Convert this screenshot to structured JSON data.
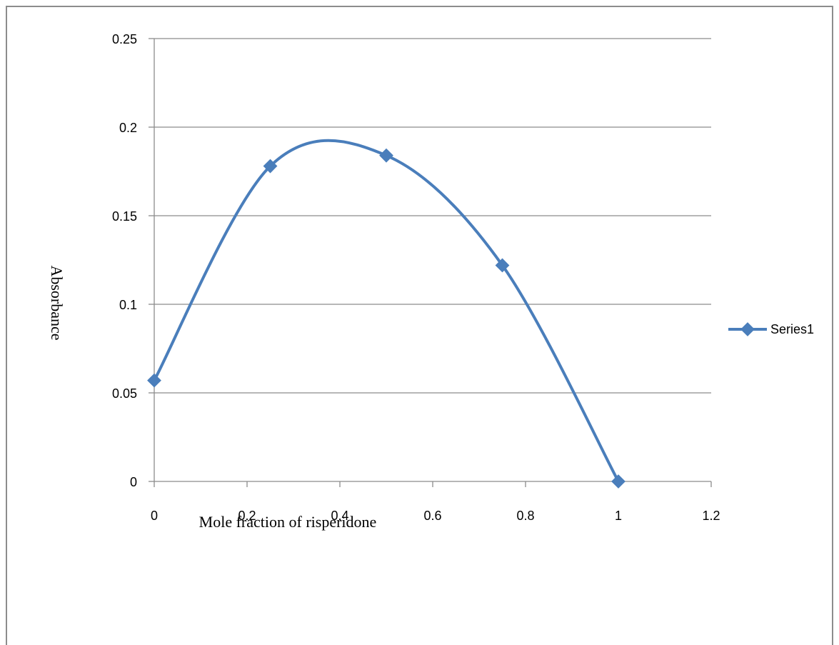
{
  "chart_data": {
    "type": "line",
    "title": "",
    "xlabel": "Mole fraction of risperidone",
    "ylabel": "Absorbance",
    "xlim": [
      0,
      1.2
    ],
    "ylim": [
      0,
      0.25
    ],
    "x_ticks": [
      "0",
      "0.2",
      "0.4",
      "0.6",
      "0.8",
      "1",
      "1.2"
    ],
    "y_ticks": [
      "0",
      "0.05",
      "0.1",
      "0.15",
      "0.2",
      "0.25"
    ],
    "grid": "horizontal",
    "legend_position": "right",
    "smooth": true,
    "series": [
      {
        "name": "Series1",
        "color": "#4a7ebb",
        "marker": "diamond",
        "x": [
          0,
          0.25,
          0.5,
          0.75,
          1
        ],
        "y": [
          0.057,
          0.178,
          0.184,
          0.122,
          0
        ]
      }
    ]
  }
}
